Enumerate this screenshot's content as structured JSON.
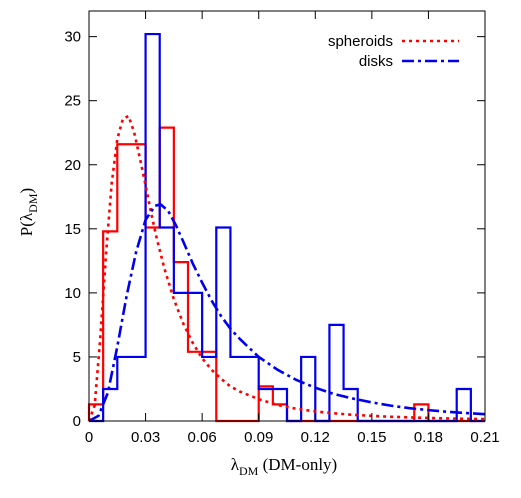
{
  "chart_data": {
    "type": "histogram+line",
    "xlabel": {
      "symbol": "λ",
      "subscript": "DM",
      "suffix": " (DM-only)"
    },
    "ylabel": {
      "prefix": "P(",
      "symbol": "λ",
      "subscript": "DM",
      "suffix": ")"
    },
    "xlim": [
      0,
      0.21
    ],
    "ylim": [
      0,
      32
    ],
    "xticks": [
      0,
      0.03,
      0.06,
      0.09,
      0.12,
      0.15,
      0.18,
      0.21
    ],
    "xtick_labels": [
      "0",
      "0.03",
      "0.06",
      "0.09",
      "0.12",
      "0.15",
      "0.18",
      "0.21"
    ],
    "yticks": [
      0,
      5,
      10,
      15,
      20,
      25,
      30
    ],
    "ytick_labels": [
      "0",
      "5",
      "10",
      "15",
      "20",
      "25",
      "30"
    ],
    "legend_position": "top-right",
    "grid": false,
    "histograms": [
      {
        "name": "spheroids",
        "color": "#ff0000",
        "bin_edges": [
          0,
          0.0075,
          0.015,
          0.0225,
          0.03,
          0.0375,
          0.045,
          0.0525,
          0.06,
          0.0675,
          0.075,
          0.0825,
          0.09,
          0.0975,
          0.105,
          0.1125,
          0.12,
          0.1275,
          0.135,
          0.1425,
          0.15,
          0.1575,
          0.165,
          0.1725,
          0.18,
          0.1875,
          0.195,
          0.2025,
          0.21
        ],
        "values": [
          1.3,
          14.8,
          21.6,
          21.6,
          15.1,
          22.9,
          12.4,
          5.4,
          5.4,
          0.0,
          0.0,
          0.0,
          2.7,
          1.3,
          0.0,
          0.0,
          0.0,
          0.0,
          0.0,
          0.0,
          0.0,
          0.0,
          0.0,
          1.3,
          0.0,
          0.0,
          0.0,
          0.0
        ]
      },
      {
        "name": "disks",
        "color": "#0000ee",
        "bin_edges": [
          0,
          0.0075,
          0.015,
          0.0225,
          0.03,
          0.0375,
          0.045,
          0.0525,
          0.06,
          0.0675,
          0.075,
          0.0825,
          0.09,
          0.0975,
          0.105,
          0.1125,
          0.12,
          0.1275,
          0.135,
          0.1425,
          0.15,
          0.1575,
          0.165,
          0.1725,
          0.18,
          0.1875,
          0.195,
          0.2025,
          0.21
        ],
        "values": [
          0.0,
          2.5,
          5.0,
          5.0,
          30.2,
          15.1,
          10.0,
          10.0,
          5.0,
          15.1,
          5.0,
          5.0,
          2.5,
          2.5,
          0.0,
          5.0,
          0.0,
          7.5,
          2.5,
          0.0,
          0.0,
          0.0,
          0.0,
          0.0,
          0.0,
          0.0,
          2.5,
          0.0
        ]
      }
    ],
    "series": [
      {
        "name": "spheroids",
        "color": "#ff0000",
        "style": "dotted",
        "x": [
          0,
          0.003,
          0.006,
          0.009,
          0.012,
          0.015,
          0.018,
          0.021,
          0.024,
          0.027,
          0.03,
          0.033,
          0.036,
          0.04,
          0.045,
          0.05,
          0.055,
          0.06,
          0.065,
          0.07,
          0.075,
          0.08,
          0.09,
          0.1,
          0.11,
          0.12,
          0.13,
          0.14,
          0.15,
          0.16,
          0.17,
          0.18,
          0.19,
          0.2,
          0.21
        ],
        "y": [
          0,
          1.2,
          6.5,
          13.0,
          18.5,
          22.0,
          23.6,
          23.8,
          22.5,
          20.5,
          18.4,
          16.2,
          14.2,
          11.9,
          9.5,
          7.6,
          6.1,
          4.9,
          4.0,
          3.3,
          2.7,
          2.3,
          1.7,
          1.25,
          0.95,
          0.75,
          0.6,
          0.48,
          0.4,
          0.33,
          0.28,
          0.24,
          0.2,
          0.17,
          0.15
        ]
      },
      {
        "name": "disks",
        "color": "#0000ee",
        "style": "dash-dot",
        "x": [
          0,
          0.005,
          0.01,
          0.015,
          0.02,
          0.025,
          0.03,
          0.035,
          0.038,
          0.042,
          0.046,
          0.05,
          0.055,
          0.06,
          0.065,
          0.07,
          0.075,
          0.08,
          0.09,
          0.1,
          0.11,
          0.12,
          0.13,
          0.14,
          0.15,
          0.16,
          0.17,
          0.18,
          0.19,
          0.2,
          0.21
        ],
        "y": [
          0,
          0.4,
          2.2,
          5.8,
          9.8,
          13.2,
          15.7,
          16.8,
          16.9,
          16.4,
          15.3,
          14.0,
          12.3,
          10.8,
          9.4,
          8.2,
          7.2,
          6.4,
          5.0,
          4.0,
          3.2,
          2.6,
          2.1,
          1.75,
          1.45,
          1.2,
          1.0,
          0.85,
          0.72,
          0.62,
          0.53
        ]
      }
    ]
  }
}
